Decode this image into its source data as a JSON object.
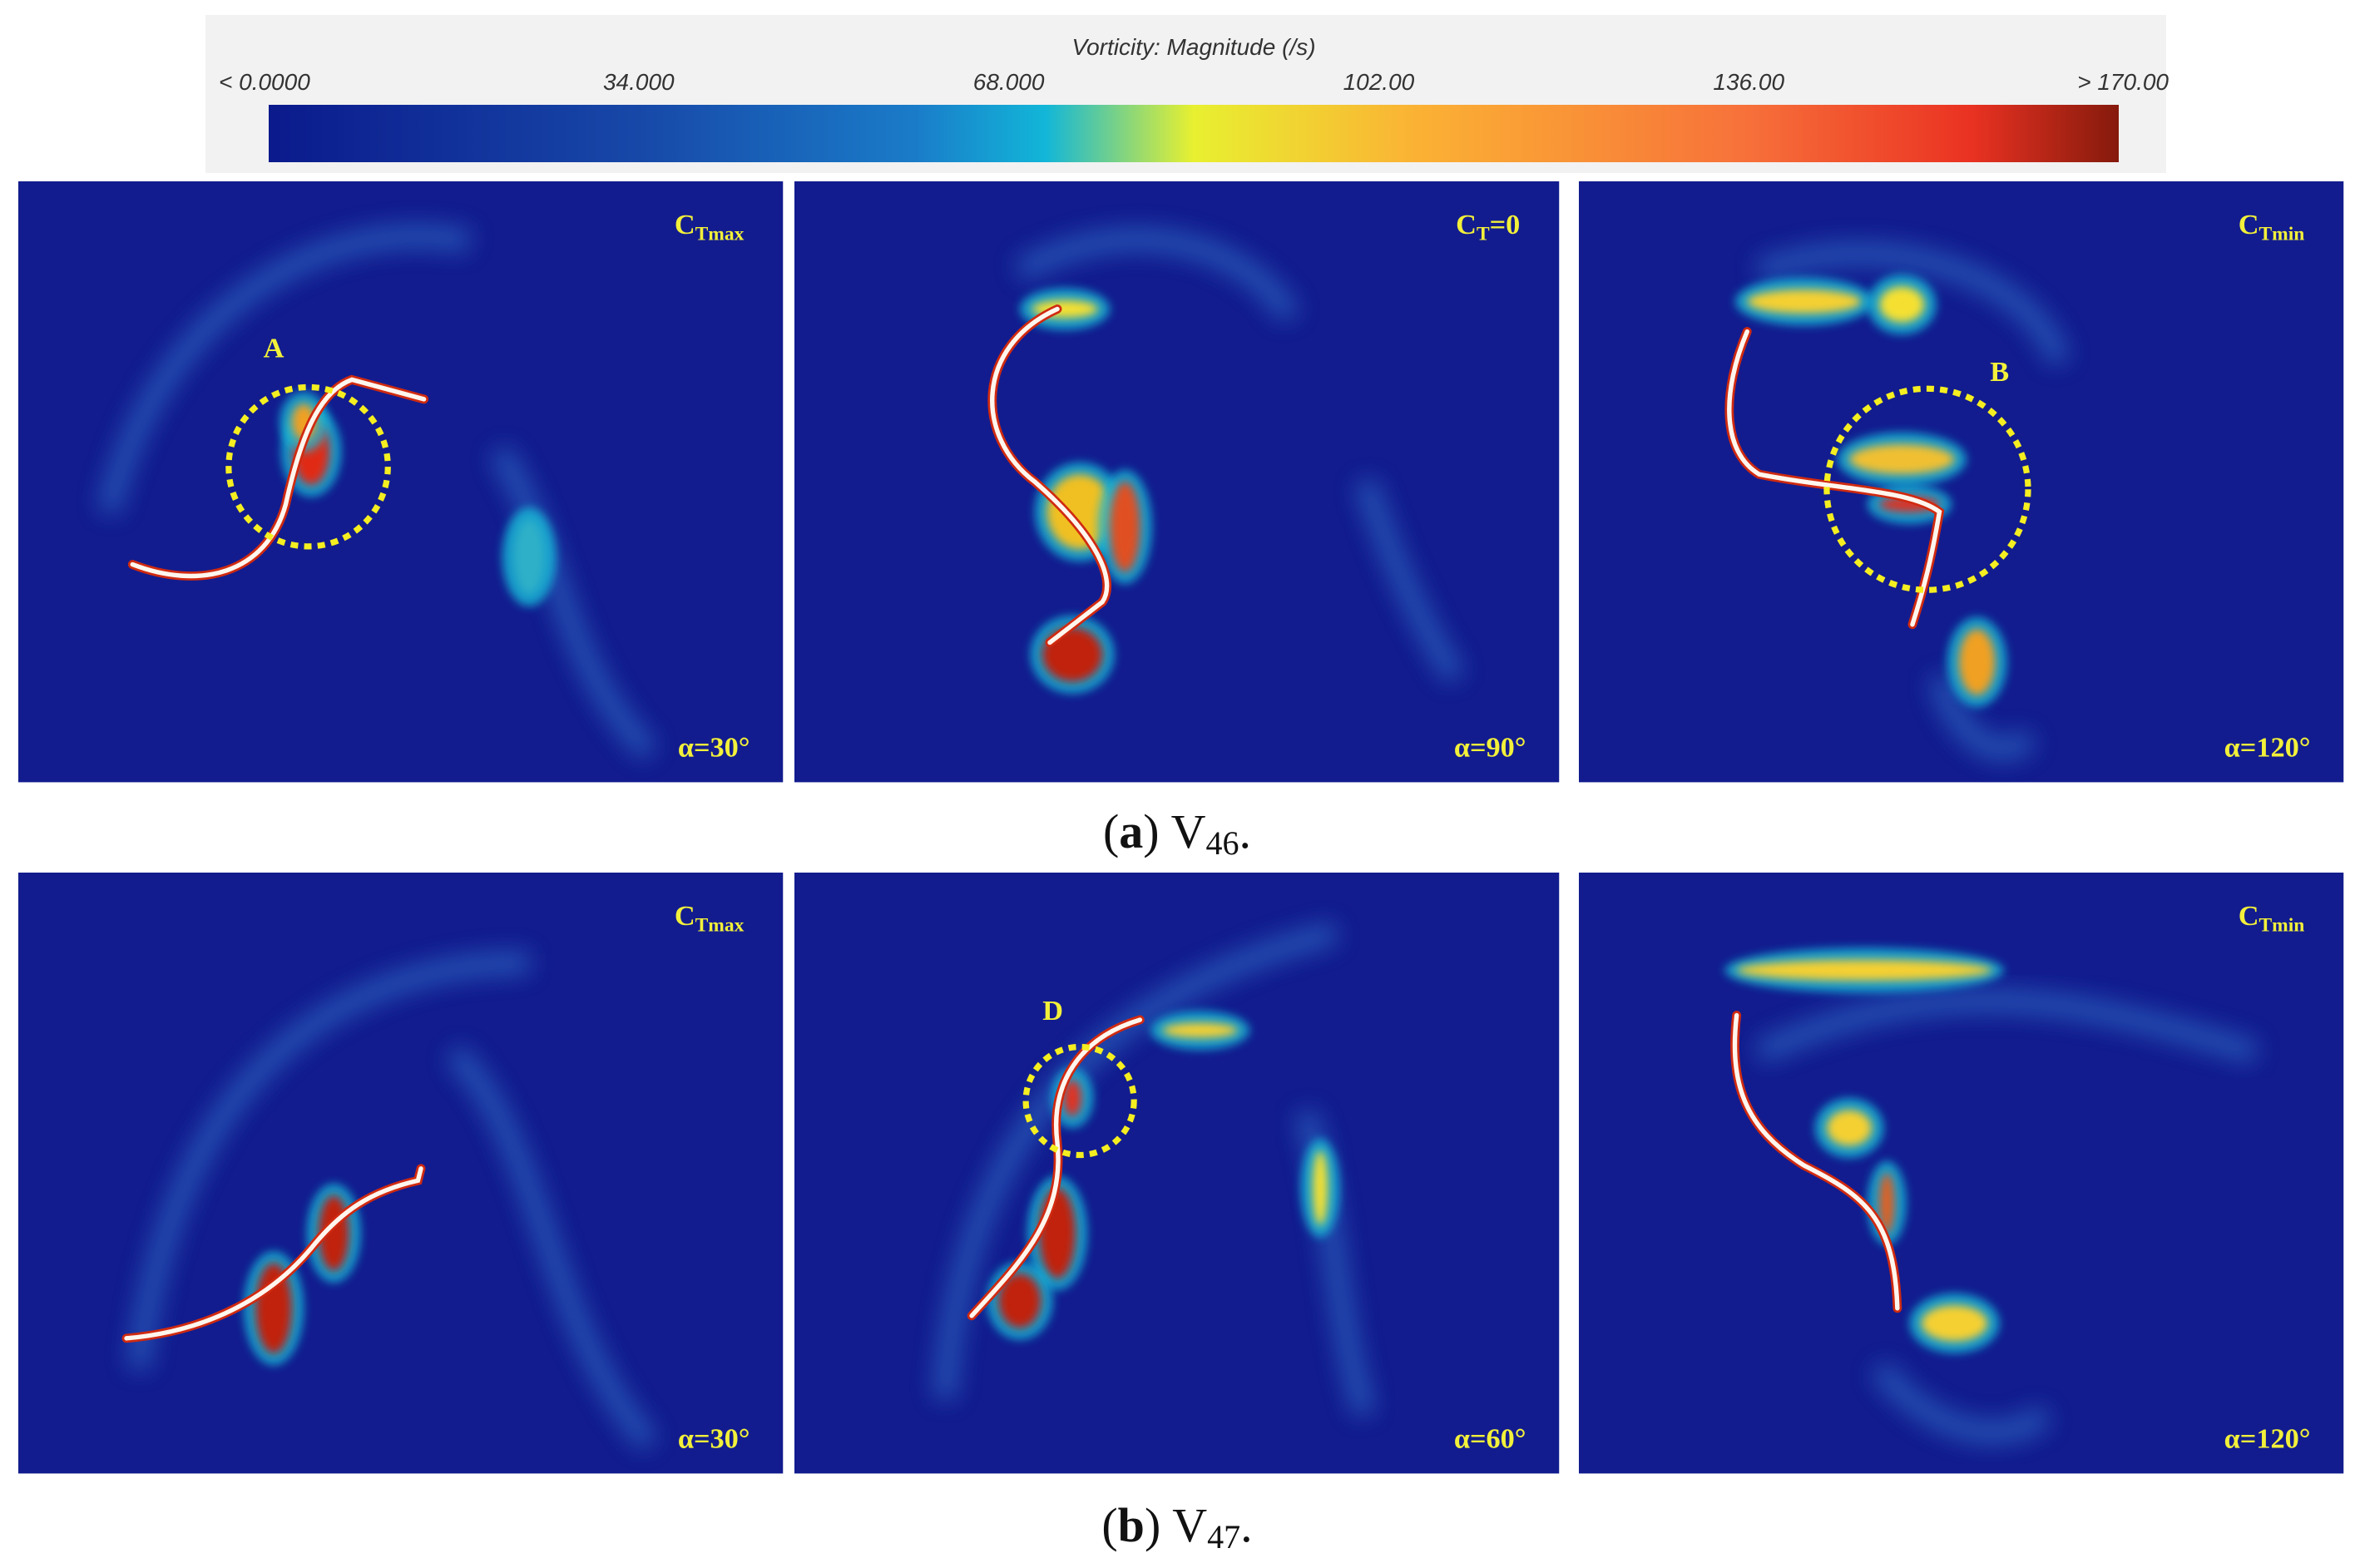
{
  "colorbar": {
    "title": "Vorticity: Magnitude (/s)",
    "ticks": [
      "< 0.0000",
      "34.000",
      "68.000",
      "102.00",
      "136.00",
      "> 170.00"
    ]
  },
  "rows": [
    {
      "panels": [
        {
          "ct": {
            "c": "C",
            "sub": "Tmax"
          },
          "alpha": "α=30°",
          "marker": "A"
        },
        {
          "ct": {
            "c": "C",
            "sub": "T",
            "rest": "=0"
          },
          "alpha": "α=90°"
        },
        {
          "ct": {
            "c": "C",
            "sub": "Tmin"
          },
          "alpha": "α=120°",
          "marker": "B"
        }
      ],
      "caption": {
        "open": "(",
        "letter": "a",
        "close": ")",
        "name": "V",
        "sub": "46",
        "end": "."
      }
    },
    {
      "panels": [
        {
          "ct": {
            "c": "C",
            "sub": "Tmax"
          },
          "alpha": "α=30°"
        },
        {
          "alpha": "α=60°",
          "marker": "D"
        },
        {
          "ct": {
            "c": "C",
            "sub": "Tmin"
          },
          "alpha": "α=120°"
        }
      ],
      "caption": {
        "open": "(",
        "letter": "b",
        "close": ")",
        "name": "V",
        "sub": "47",
        "end": "."
      }
    }
  ]
}
